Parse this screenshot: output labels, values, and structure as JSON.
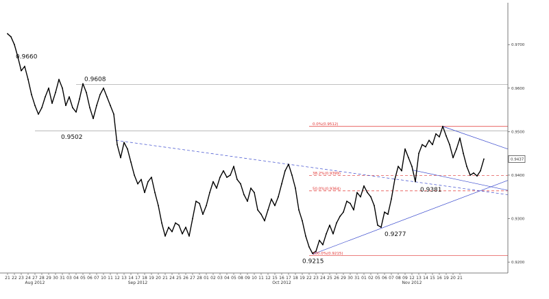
{
  "chart_data": {
    "type": "line",
    "title": "",
    "xlabel": "",
    "ylabel": "",
    "ylim": [
      0.9175,
      0.979
    ],
    "y_ticks": [
      "0.9700",
      "0.9600",
      "0.9500",
      "0.9400",
      "0.9300",
      "0.9200"
    ],
    "current_price": "0.9437",
    "x_day_labels": [
      "21",
      "22",
      "23",
      "24",
      "27",
      "28",
      "29",
      "30",
      "31",
      "03",
      "04",
      "05",
      "06",
      "07",
      "10",
      "11",
      "12",
      "13",
      "14",
      "17",
      "18",
      "19",
      "20",
      "21",
      "24",
      "25",
      "26",
      "27",
      "28",
      "01",
      "02",
      "03",
      "04",
      "05",
      "08",
      "09",
      "10",
      "11",
      "12",
      "15",
      "16",
      "17",
      "18",
      "19",
      "22",
      "23",
      "24",
      "25",
      "26",
      "29",
      "30",
      "31",
      "01",
      "02",
      "05",
      "06",
      "07",
      "08",
      "09",
      "12",
      "13",
      "14",
      "15",
      "16",
      "19",
      "20",
      "21"
    ],
    "month_labels": [
      {
        "label": "Aug 2012",
        "day_index": 4
      },
      {
        "label": "Sep 2012",
        "day_index": 19
      },
      {
        "label": "Oct 2012",
        "day_index": 40
      },
      {
        "label": "Nov 2012",
        "day_index": 59
      }
    ],
    "series": [
      {
        "values": [
          [
            0,
            0.9725
          ],
          [
            0.5,
            0.9718
          ],
          [
            1,
            0.97
          ],
          [
            1.5,
            0.9672
          ],
          [
            2,
            0.964
          ],
          [
            2.5,
            0.965
          ],
          [
            3,
            0.962
          ],
          [
            3.5,
            0.9585
          ],
          [
            4,
            0.956
          ],
          [
            4.5,
            0.954
          ],
          [
            5,
            0.9555
          ],
          [
            5.5,
            0.958
          ],
          [
            6,
            0.96
          ],
          [
            6.5,
            0.9565
          ],
          [
            7,
            0.959
          ],
          [
            7.5,
            0.962
          ],
          [
            8,
            0.96
          ],
          [
            8.5,
            0.956
          ],
          [
            9,
            0.958
          ],
          [
            9.5,
            0.9555
          ],
          [
            10,
            0.9545
          ],
          [
            10.5,
            0.9575
          ],
          [
            11,
            0.961
          ],
          [
            11.5,
            0.959
          ],
          [
            12,
            0.9555
          ],
          [
            12.5,
            0.953
          ],
          [
            13,
            0.956
          ],
          [
            13.5,
            0.9585
          ],
          [
            14,
            0.96
          ],
          [
            14.5,
            0.958
          ],
          [
            15,
            0.956
          ],
          [
            15.5,
            0.954
          ],
          [
            16,
            0.947
          ],
          [
            16.5,
            0.944
          ],
          [
            17,
            0.9475
          ],
          [
            17.5,
            0.946
          ],
          [
            18,
            0.943
          ],
          [
            18.5,
            0.94
          ],
          [
            19,
            0.938
          ],
          [
            19.5,
            0.939
          ],
          [
            20,
            0.936
          ],
          [
            20.5,
            0.9385
          ],
          [
            21,
            0.9395
          ],
          [
            21.5,
            0.936
          ],
          [
            22,
            0.933
          ],
          [
            22.5,
            0.929
          ],
          [
            23,
            0.926
          ],
          [
            23.5,
            0.928
          ],
          [
            24,
            0.927
          ],
          [
            24.5,
            0.929
          ],
          [
            25,
            0.9285
          ],
          [
            25.5,
            0.9265
          ],
          [
            26,
            0.928
          ],
          [
            26.5,
            0.926
          ],
          [
            27,
            0.93
          ],
          [
            27.5,
            0.934
          ],
          [
            28,
            0.9335
          ],
          [
            28.5,
            0.931
          ],
          [
            29,
            0.933
          ],
          [
            29.5,
            0.936
          ],
          [
            30,
            0.9385
          ],
          [
            30.5,
            0.937
          ],
          [
            31,
            0.9395
          ],
          [
            31.5,
            0.941
          ],
          [
            32,
            0.9395
          ],
          [
            32.5,
            0.94
          ],
          [
            33,
            0.942
          ],
          [
            33.5,
            0.939
          ],
          [
            34,
            0.938
          ],
          [
            34.5,
            0.9355
          ],
          [
            35,
            0.934
          ],
          [
            35.5,
            0.937
          ],
          [
            36,
            0.936
          ],
          [
            36.5,
            0.932
          ],
          [
            37,
            0.931
          ],
          [
            37.5,
            0.9295
          ],
          [
            38,
            0.932
          ],
          [
            38.5,
            0.9345
          ],
          [
            39,
            0.933
          ],
          [
            39.5,
            0.935
          ],
          [
            40,
            0.938
          ],
          [
            40.5,
            0.941
          ],
          [
            41,
            0.9425
          ],
          [
            41.5,
            0.94
          ],
          [
            42,
            0.937
          ],
          [
            42.5,
            0.932
          ],
          [
            43,
            0.9295
          ],
          [
            43.5,
            0.926
          ],
          [
            44,
            0.9235
          ],
          [
            44.5,
            0.922
          ],
          [
            45,
            0.9225
          ],
          [
            45.5,
            0.925
          ],
          [
            46,
            0.924
          ],
          [
            46.5,
            0.9265
          ],
          [
            47,
            0.9285
          ],
          [
            47.5,
            0.9265
          ],
          [
            48,
            0.929
          ],
          [
            48.5,
            0.9305
          ],
          [
            49,
            0.9315
          ],
          [
            49.5,
            0.934
          ],
          [
            50,
            0.9335
          ],
          [
            50.5,
            0.932
          ],
          [
            51,
            0.936
          ],
          [
            51.5,
            0.935
          ],
          [
            52,
            0.9375
          ],
          [
            52.5,
            0.936
          ],
          [
            53,
            0.935
          ],
          [
            53.5,
            0.933
          ],
          [
            54,
            0.9285
          ],
          [
            54.5,
            0.928
          ],
          [
            55,
            0.9315
          ],
          [
            55.5,
            0.931
          ],
          [
            56,
            0.9345
          ],
          [
            56.5,
            0.939
          ],
          [
            57,
            0.942
          ],
          [
            57.5,
            0.941
          ],
          [
            58,
            0.946
          ],
          [
            58.5,
            0.944
          ],
          [
            59,
            0.942
          ],
          [
            59.5,
            0.9385
          ],
          [
            60,
            0.945
          ],
          [
            60.5,
            0.947
          ],
          [
            61,
            0.9465
          ],
          [
            61.5,
            0.948
          ],
          [
            62,
            0.947
          ],
          [
            62.5,
            0.9495
          ],
          [
            63,
            0.9488
          ],
          [
            63.5,
            0.9512
          ],
          [
            64,
            0.949
          ],
          [
            64.5,
            0.947
          ],
          [
            65,
            0.944
          ],
          [
            65.5,
            0.946
          ],
          [
            66,
            0.9485
          ],
          [
            66.5,
            0.945
          ],
          [
            67,
            0.942
          ],
          [
            67.5,
            0.94
          ],
          [
            68,
            0.9405
          ],
          [
            68.5,
            0.9398
          ],
          [
            69,
            0.941
          ],
          [
            69.5,
            0.9437
          ]
        ]
      }
    ],
    "levels": [
      {
        "label": "0.9660",
        "x": 1.2,
        "y": 0.966
      },
      {
        "label": "0.9608",
        "x": 11.2,
        "y": 0.9608
      },
      {
        "label": "0.9502",
        "x": 7.8,
        "y": 0.9502
      },
      {
        "label": "0.9381",
        "x": 60.2,
        "y": 0.9381
      },
      {
        "label": "0.9277",
        "x": 55.0,
        "y": 0.9277
      },
      {
        "label": "0.9215",
        "x": 43.0,
        "y": 0.9215
      }
    ],
    "horizontal_lines": [
      {
        "y": 0.9608,
        "x_from": 10.0,
        "x_to": 73.0,
        "style": "solid-gray"
      },
      {
        "y": 0.9502,
        "x_from": 4.0,
        "x_to": 73.0,
        "style": "solid-gray"
      },
      {
        "y": 0.9512,
        "x_from": 44.0,
        "x_to": 73.0,
        "style": "solid-red"
      },
      {
        "y": 0.9399,
        "x_from": 44.0,
        "x_to": 73.0,
        "style": "dashed-red"
      },
      {
        "y": 0.9364,
        "x_from": 44.0,
        "x_to": 73.0,
        "style": "dashed-red"
      },
      {
        "y": 0.9215,
        "x_from": 44.0,
        "x_to": 73.0,
        "style": "solid-red"
      }
    ],
    "fib_labels": [
      {
        "label": "0.0%(0.9512)",
        "x": 44.5,
        "y": 0.9512
      },
      {
        "label": "38.2%(0.9399)",
        "x": 44.5,
        "y": 0.9399
      },
      {
        "label": "50.0%(0.9364)",
        "x": 44.5,
        "y": 0.9364
      },
      {
        "label": "100.0%(0.9215)",
        "x": 44.5,
        "y": 0.9215
      }
    ],
    "trendlines": [
      {
        "x1": 15.8,
        "y1": 0.948,
        "x2": 73.0,
        "y2": 0.9355,
        "style": "dashed-blue"
      },
      {
        "x1": 44.5,
        "y1": 0.9218,
        "x2": 73.0,
        "y2": 0.9388,
        "style": "solid-blue"
      },
      {
        "x1": 63.5,
        "y1": 0.9512,
        "x2": 73.0,
        "y2": 0.946,
        "style": "solid-blue"
      },
      {
        "x1": 59.0,
        "y1": 0.9412,
        "x2": 73.0,
        "y2": 0.9365,
        "style": "solid-blue"
      }
    ]
  }
}
